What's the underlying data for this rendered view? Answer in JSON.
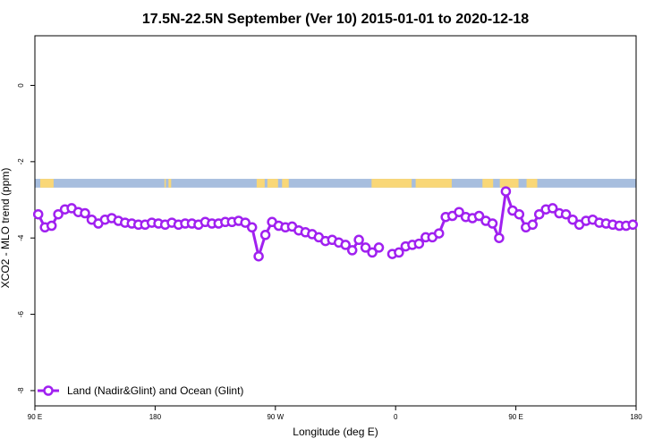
{
  "chart_data": {
    "type": "line",
    "title": "17.5N-22.5N September (Ver 10)   2015-01-01 to 2020-12-18",
    "xlabel": "Longitude (deg E)",
    "ylabel": "XCO2 - MLO trend (ppm)",
    "xlim": [
      90,
      450
    ],
    "ylim": [
      -8.4,
      1.3
    ],
    "x_ticks": [
      {
        "value": 90,
        "label": "90 E"
      },
      {
        "value": 180,
        "label": "180"
      },
      {
        "value": 270,
        "label": "90 W"
      },
      {
        "value": 360,
        "label": "0"
      },
      {
        "value": 450,
        "label": "90 E"
      },
      {
        "value": 540,
        "label": "180"
      }
    ],
    "y_ticks": [
      {
        "value": 0,
        "label": "0"
      },
      {
        "value": -2,
        "label": "-2"
      },
      {
        "value": -4,
        "label": "-4"
      },
      {
        "value": -6,
        "label": "-6"
      },
      {
        "value": -8,
        "label": "-8"
      }
    ],
    "x_display_range": [
      90,
      540
    ],
    "grid": false,
    "legend_position": "bottom-left",
    "land_ocean_band": {
      "y_top": -2.45,
      "y_bottom": -2.68,
      "ocean_color": "#a7bede",
      "land_color": "#f9d777",
      "land_segments": [
        [
          94,
          104
        ],
        [
          190,
          192
        ],
        [
          187,
          188
        ],
        [
          256,
          262
        ],
        [
          264,
          272
        ],
        [
          275,
          280
        ],
        [
          342,
          372
        ],
        [
          375,
          402
        ],
        [
          425,
          433
        ],
        [
          438,
          452
        ],
        [
          458,
          466
        ]
      ]
    },
    "series": [
      {
        "name": "Land (Nadir&Glint) and Ocean (Glint)",
        "color": "#a020f0",
        "segments": [
          {
            "x": [
              92.5,
              97.5,
              102.5,
              107.5,
              112.5,
              117.5,
              122.5,
              127.5,
              132.5,
              137.5,
              142.5,
              147.5,
              152.5,
              157.5,
              162.5,
              167.5,
              172.5,
              177.5,
              182.5,
              187.5,
              192.5,
              197.5,
              202.5,
              207.5,
              212.5,
              217.5,
              222.5,
              227.5,
              232.5,
              237.5,
              242.5,
              247.5,
              252.5,
              257.5,
              262.5,
              267.5,
              272.5,
              277.5,
              282.5,
              287.5,
              292.5,
              297.5,
              302.5,
              307.5,
              312.5,
              317.5,
              322.5,
              327.5,
              332.5,
              337.5,
              342.5,
              347.5,
              352.5
            ],
            "y": [
              -3.38,
              -3.72,
              -3.68,
              -3.38,
              -3.25,
              -3.22,
              -3.32,
              -3.35,
              -3.52,
              -3.62,
              -3.52,
              -3.48,
              -3.55,
              -3.6,
              -3.62,
              -3.65,
              -3.65,
              -3.6,
              -3.62,
              -3.65,
              -3.6,
              -3.65,
              -3.62,
              -3.62,
              -3.65,
              -3.58,
              -3.62,
              -3.62,
              -3.58,
              -3.58,
              -3.55,
              -3.6,
              -3.72,
              -4.48,
              -3.92,
              -3.58,
              -3.68,
              -3.72,
              -3.7,
              -3.8,
              -3.85,
              -3.9,
              -3.98,
              -4.08,
              -4.05,
              -4.12,
              -4.18,
              -4.32,
              -4.05,
              -4.25,
              -4.38,
              -4.25,
              null
            ]
          },
          {
            "x": [
              357.5,
              362.5,
              367.5,
              372.5,
              377.5,
              382.5,
              387.5,
              392.5,
              397.5,
              402.5,
              407.5,
              412.5,
              417.5,
              422.5,
              427.5,
              432.5,
              437.5,
              442.5,
              447.5,
              452.5,
              457.5,
              462.5,
              467.5,
              472.5,
              477.5,
              482.5,
              487.5,
              492.5,
              497.5,
              502.5,
              507.5,
              512.5,
              517.5,
              522.5,
              527.5,
              532.5,
              537.5
            ],
            "y": [
              -4.42,
              -4.38,
              -4.22,
              -4.18,
              -4.15,
              -3.98,
              -3.98,
              -3.88,
              -3.45,
              -3.42,
              -3.32,
              -3.45,
              -3.48,
              -3.42,
              -3.55,
              -3.62,
              -4.0,
              -2.78,
              -3.28,
              -3.38,
              -3.72,
              -3.65,
              -3.38,
              -3.25,
              -3.22,
              -3.35,
              -3.38,
              -3.52,
              -3.65,
              -3.55,
              -3.52,
              -3.6,
              -3.62,
              -3.65,
              -3.68,
              -3.68,
              -3.65
            ]
          }
        ]
      }
    ]
  }
}
